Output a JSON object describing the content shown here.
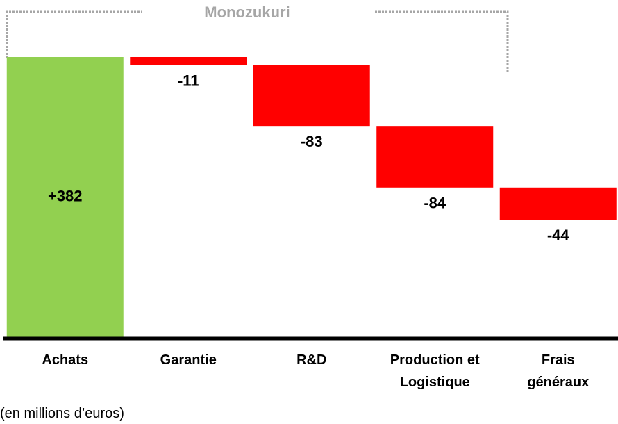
{
  "chart_data": {
    "type": "waterfall",
    "annotation": "Monozukuri",
    "note": "(en millions d’euros)",
    "categories": [
      "Achats",
      "Garantie",
      "R&D",
      "Production et\nLogistique",
      "Frais\ngénéraux"
    ],
    "values": [
      382,
      -11,
      -83,
      -84,
      -44
    ],
    "value_labels": [
      "+382",
      "-11",
      "-83",
      "-84",
      "-44"
    ],
    "colors": {
      "increase": "#92d050",
      "decrease": "#ff0000"
    }
  }
}
